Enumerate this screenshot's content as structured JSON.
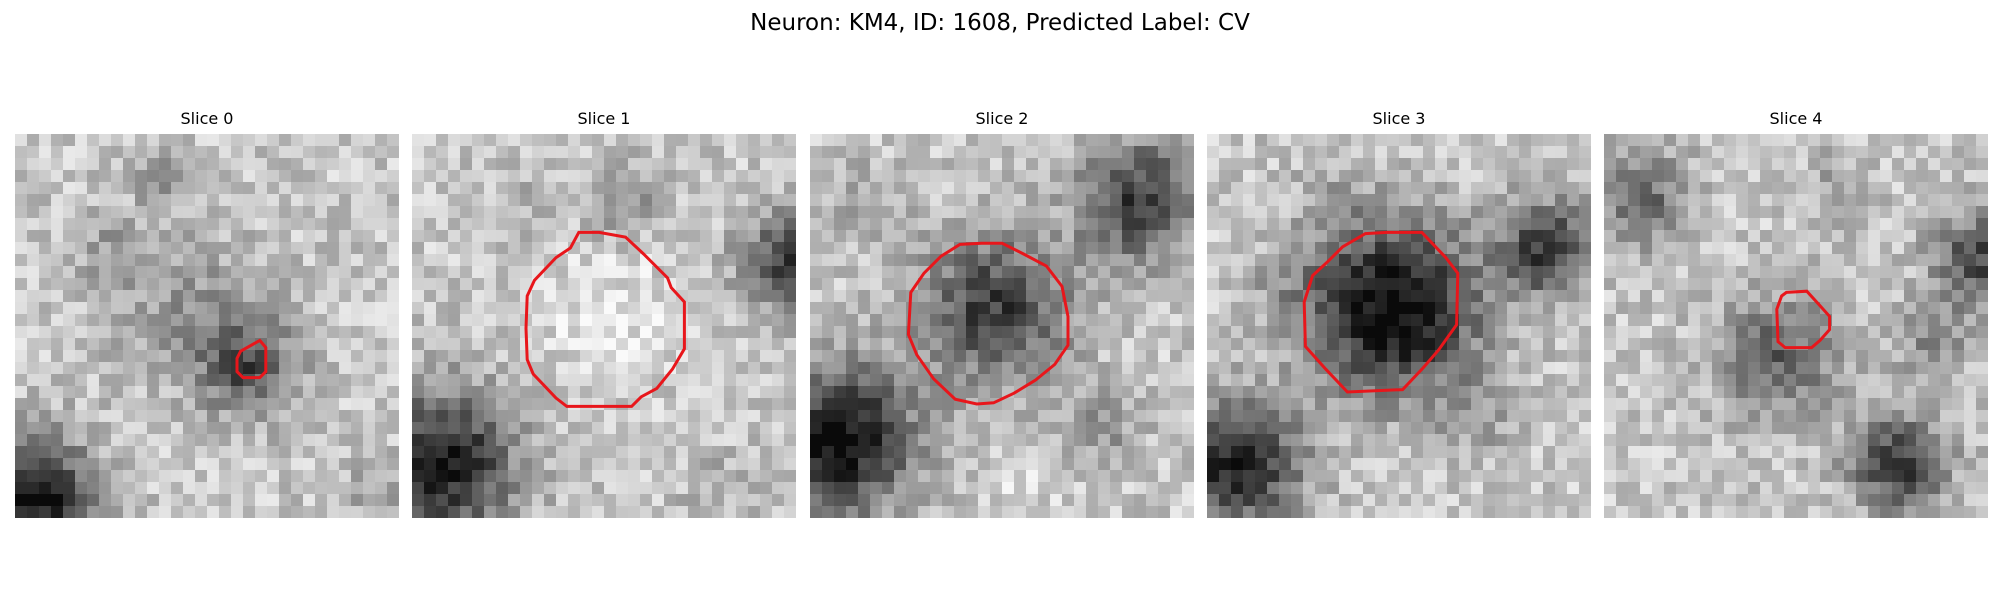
{
  "title": "Neuron: KM4, ID: 1608, Predicted Label: CV",
  "panels": [
    {
      "label": "Slice 0",
      "contour_color": "#e8161b"
    },
    {
      "label": "Slice 1",
      "contour_color": "#e8161b"
    },
    {
      "label": "Slice 2",
      "contour_color": "#e8161b"
    },
    {
      "label": "Slice 3",
      "contour_color": "#e8161b"
    },
    {
      "label": "Slice 4",
      "contour_color": "#e8161b"
    }
  ],
  "colormap": "gray"
}
